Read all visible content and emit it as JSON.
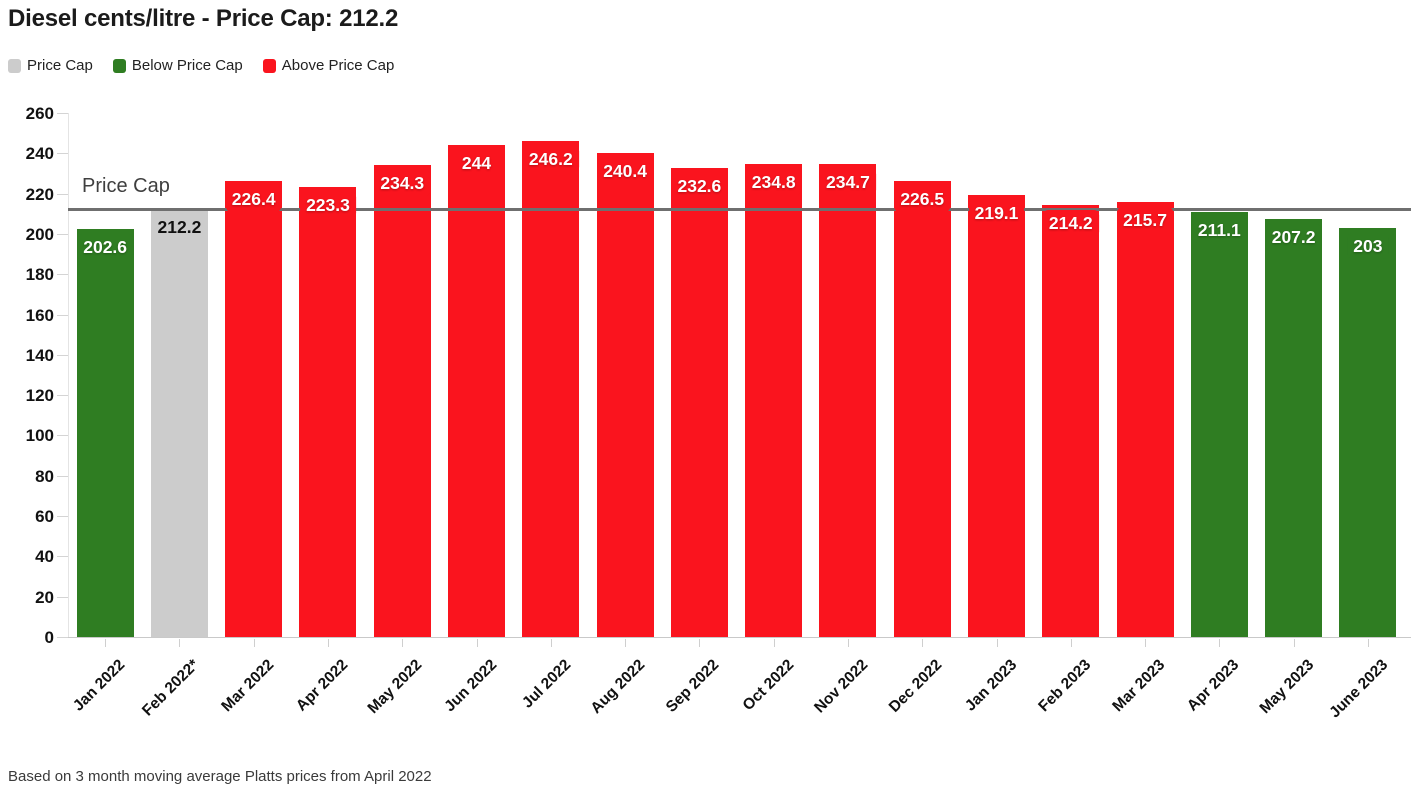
{
  "title": "Diesel cents/litre - Price Cap: 212.2",
  "legend": {
    "items": [
      {
        "label": "Price Cap",
        "color": "#cccccc"
      },
      {
        "label": "Below Price Cap",
        "color": "#2f7d22"
      },
      {
        "label": "Above Price Cap",
        "color": "#fa141e"
      }
    ]
  },
  "annotations": {
    "price_cap_line_label": "Price Cap"
  },
  "footer": {
    "note": "Based on 3 month moving average Platts prices from April 2022"
  },
  "colors": {
    "below": "#2f7d22",
    "above": "#fa141e",
    "cap_bar": "#cccccc",
    "cap_line": "#6f6f6f"
  },
  "chart_data": {
    "type": "bar",
    "title": "Diesel cents/litre - Price Cap: 212.2",
    "categories": [
      "Jan 2022",
      "Feb 2022*",
      "Mar 2022",
      "Apr 2022",
      "May 2022",
      "Jun 2022",
      "Jul 2022",
      "Aug 2022",
      "Sep 2022",
      "Oct 2022",
      "Nov 2022",
      "Dec 2022",
      "Jan 2023",
      "Feb 2023",
      "Mar 2023",
      "Apr 2023",
      "May 2023",
      "June 2023"
    ],
    "values": [
      202.6,
      212.2,
      226.4,
      223.3,
      234.3,
      244,
      246.2,
      240.4,
      232.6,
      234.8,
      234.7,
      226.5,
      219.1,
      214.2,
      215.7,
      211.1,
      207.2,
      203
    ],
    "labels": [
      "202.6",
      "212.2",
      "226.4",
      "223.3",
      "234.3",
      "244",
      "246.2",
      "240.4",
      "232.6",
      "234.8",
      "234.7",
      "226.5",
      "219.1",
      "214.2",
      "215.7",
      "211.1",
      "207.2",
      "203"
    ],
    "statuses": [
      "below",
      "cap",
      "above",
      "above",
      "above",
      "above",
      "above",
      "above",
      "above",
      "above",
      "above",
      "above",
      "above",
      "above",
      "above",
      "below",
      "below",
      "below"
    ],
    "price_cap": 212.2,
    "xlabel": "",
    "ylabel": "",
    "ylim": [
      0,
      260
    ],
    "ytick_step": 20,
    "grid": "off",
    "legend_position": "top",
    "footnote": "Based on 3 month moving average Platts prices from April 2022"
  }
}
